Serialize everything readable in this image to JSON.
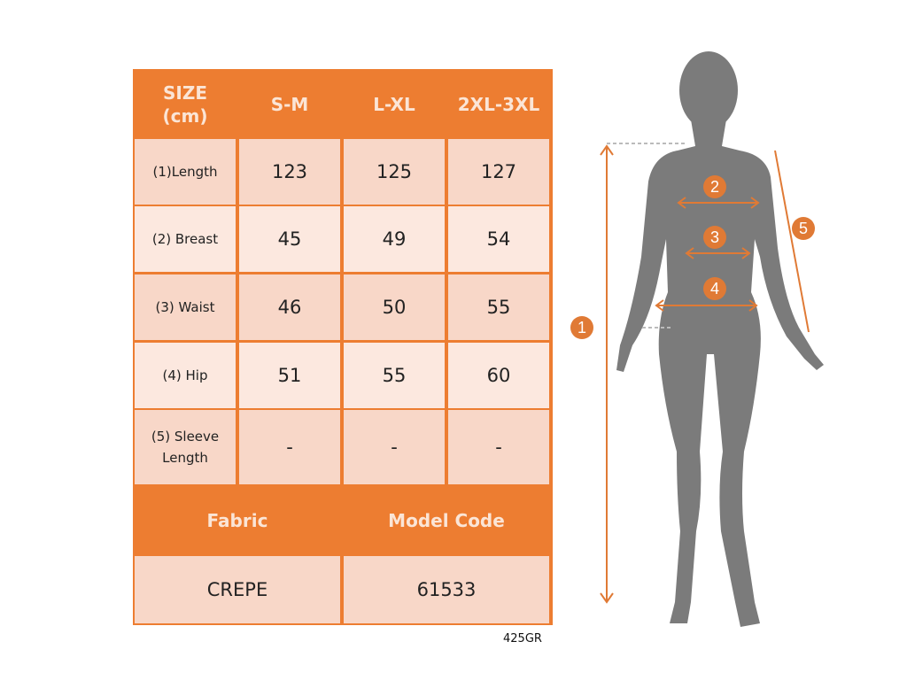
{
  "table": {
    "header": [
      "SIZE\n(cm)",
      "S-M",
      "L-XL",
      "2XL-3XL"
    ],
    "rows": [
      {
        "label": "(1)Length",
        "values": [
          "123",
          "125",
          "127"
        ]
      },
      {
        "label": "(2) Breast",
        "values": [
          "45",
          "49",
          "54"
        ]
      },
      {
        "label": "(3) Waist",
        "values": [
          "46",
          "50",
          "55"
        ]
      },
      {
        "label": "(4) Hip",
        "values": [
          "51",
          "55",
          "60"
        ]
      },
      {
        "label": "(5) Sleeve Length",
        "values": [
          "-",
          "-",
          "-"
        ]
      }
    ],
    "fabric_label": "Fabric",
    "model_code_label": "Model Code",
    "fabric": "CREPE",
    "model_code": "61533"
  },
  "product_code": "425GR",
  "markers": [
    "1",
    "2",
    "3",
    "4",
    "5"
  ],
  "colors": {
    "accent": "#ed7d31",
    "silhouette": "#7b7b7b"
  }
}
